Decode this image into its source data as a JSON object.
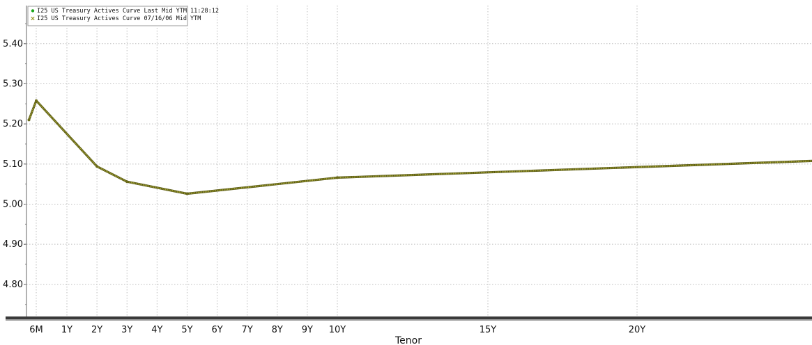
{
  "chart_data": {
    "type": "line",
    "xlabel": "Tenor",
    "ylabel": "",
    "ylim": [
      4.72,
      5.495
    ],
    "grid": true,
    "legend_position": "top-left",
    "legend": [
      {
        "marker": "dot",
        "color": "#1aa51a",
        "text": "I25 US Treasury Actives Curve Last Mid YTM 11:28:12"
      },
      {
        "marker": "x",
        "color": "#9a9a2a",
        "text": "I25 US Treasury Actives Curve 07/16/06 Mid YTM"
      }
    ],
    "y_ticks": [
      {
        "value": 5.4,
        "label": "5.40"
      },
      {
        "value": 5.3,
        "label": "5.30"
      },
      {
        "value": 5.2,
        "label": "5.20"
      },
      {
        "value": 5.1,
        "label": "5.10"
      },
      {
        "value": 5.0,
        "label": "5.00"
      },
      {
        "value": 4.9,
        "label": "4.90"
      },
      {
        "value": 4.8,
        "label": "4.80"
      }
    ],
    "x_ticks": [
      {
        "years": 0.5,
        "label": "6M"
      },
      {
        "years": 1,
        "label": "1Y"
      },
      {
        "years": 2,
        "label": "2Y"
      },
      {
        "years": 3,
        "label": "3Y"
      },
      {
        "years": 4,
        "label": "4Y"
      },
      {
        "years": 5,
        "label": "5Y"
      },
      {
        "years": 6,
        "label": "6Y"
      },
      {
        "years": 7,
        "label": "7Y"
      },
      {
        "years": 8,
        "label": "8Y"
      },
      {
        "years": 9,
        "label": "9Y"
      },
      {
        "years": 10,
        "label": "10Y"
      },
      {
        "years": 15,
        "label": "15Y"
      },
      {
        "years": 20,
        "label": "20Y"
      }
    ],
    "series": [
      {
        "color": "#a8a832",
        "points": [
          {
            "years": 0.25,
            "y": 5.21
          },
          {
            "years": 0.5,
            "y": 5.258
          },
          {
            "years": 2,
            "y": 5.094
          },
          {
            "years": 3,
            "y": 5.056
          },
          {
            "years": 5,
            "y": 5.026
          },
          {
            "years": 10,
            "y": 5.066
          },
          {
            "years": 30,
            "y": 5.108
          }
        ]
      }
    ]
  }
}
